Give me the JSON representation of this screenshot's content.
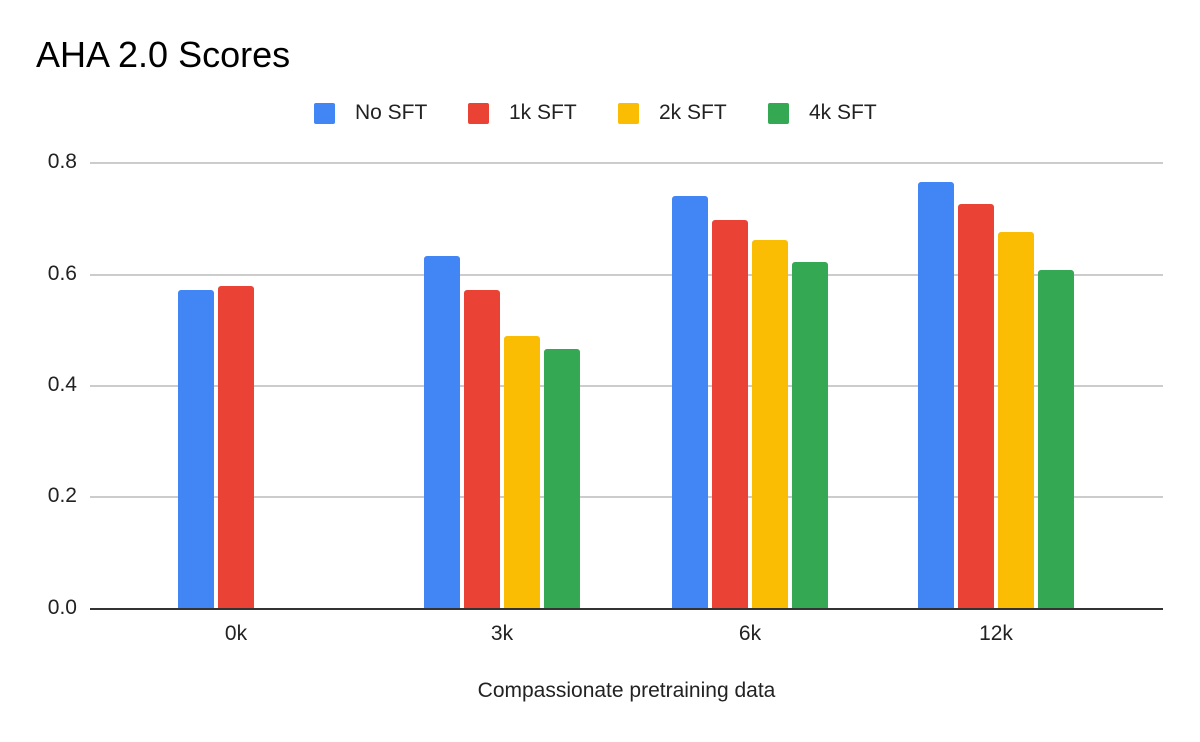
{
  "chart_data": {
    "type": "bar",
    "title": "AHA 2.0 Scores",
    "xlabel": "Compassionate pretraining data",
    "ylabel": "",
    "categories": [
      "0k",
      "3k",
      "6k",
      "12k"
    ],
    "series": [
      {
        "name": "No SFT",
        "color": "#4285F4",
        "values": [
          0.573,
          0.633,
          0.741,
          0.766
        ]
      },
      {
        "name": "1k SFT",
        "color": "#EA4335",
        "values": [
          0.58,
          0.572,
          0.698,
          0.726
        ]
      },
      {
        "name": "2k SFT",
        "color": "#FBBC04",
        "values": [
          null,
          0.489,
          0.662,
          0.676
        ]
      },
      {
        "name": "4k SFT",
        "color": "#34A853",
        "values": [
          null,
          0.467,
          0.622,
          0.608
        ]
      }
    ],
    "ylim": [
      0,
      0.8
    ],
    "yticks": [
      "0.0",
      "0.2",
      "0.4",
      "0.6",
      "0.8"
    ],
    "grid": true,
    "legend_position": "top"
  }
}
